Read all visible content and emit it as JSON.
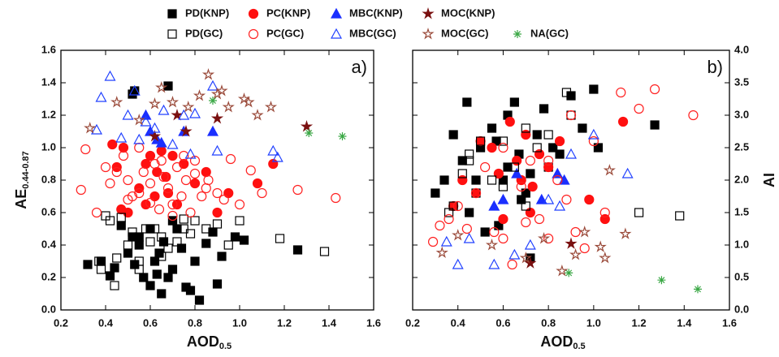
{
  "chart_data": [
    {
      "type": "scatter",
      "panel_label": "a)",
      "xlabel": {
        "text": "AOD",
        "sub": "0.5"
      },
      "ylabel": {
        "text": "AE",
        "sub": "0.44-0.87"
      },
      "xlim": [
        0.2,
        1.6
      ],
      "xticks": [
        0.2,
        0.4,
        0.6,
        0.8,
        {
          "value": 1,
          "label": "1.0"
        },
        1.2,
        1.4,
        1.6
      ],
      "ylim": [
        0,
        1.6
      ],
      "yticks": [
        {
          "value": 0,
          "label": "0.0"
        },
        0.2,
        0.4,
        0.6,
        0.8,
        {
          "value": 1,
          "label": "1.0"
        },
        1.2,
        1.4,
        1.6
      ],
      "series": [
        {
          "name": "PD(KNP)",
          "color": "#000000",
          "marker": "square",
          "filled": true,
          "x": [
            0.32,
            0.38,
            0.42,
            0.44,
            0.47,
            0.5,
            0.52,
            0.53,
            0.55,
            0.57,
            0.6,
            0.62,
            0.64,
            0.65,
            0.66,
            0.68,
            0.7,
            0.72,
            0.74,
            0.76,
            0.78,
            0.8,
            0.82,
            0.85,
            0.88,
            0.9,
            0.92,
            0.98,
            1.02,
            1.26,
            0.52,
            0.53,
            0.68,
            0.55,
            0.6,
            0.63,
            0.7
          ],
          "values": [
            0.28,
            0.3,
            0.21,
            0.26,
            0.52,
            0.35,
            0.45,
            0.28,
            0.4,
            0.2,
            0.15,
            0.3,
            0.35,
            0.1,
            0.42,
            0.2,
            0.25,
            0.5,
            0.38,
            0.14,
            0.12,
            0.3,
            0.06,
            0.41,
            0.48,
            0.16,
            0.33,
            0.45,
            0.43,
            0.37,
            1.33,
            1.35,
            1.38,
            0.45,
            0.5,
            0.22,
            0.55
          ]
        },
        {
          "name": "PC(KNP)",
          "color": "#ff1010",
          "marker": "circle",
          "filled": true,
          "x": [
            0.43,
            0.45,
            0.48,
            0.5,
            0.55,
            0.58,
            0.6,
            0.62,
            0.63,
            0.65,
            0.67,
            0.7,
            0.72,
            0.75,
            0.8,
            0.85,
            0.9,
            0.95,
            1.08,
            1.15,
            0.47,
            0.58,
            0.68
          ],
          "values": [
            1.02,
            0.88,
            1.0,
            0.6,
            0.75,
            0.9,
            0.95,
            0.7,
            0.85,
            0.98,
            0.82,
            0.95,
            0.65,
            0.9,
            0.78,
            0.85,
            0.6,
            0.72,
            0.78,
            0.9,
            0.62,
            0.65,
            0.72
          ]
        },
        {
          "name": "MBC(KNP)",
          "color": "#1a2fff",
          "marker": "triangle",
          "filled": true,
          "x": [
            0.58,
            0.6,
            0.63,
            0.65,
            0.75,
            0.88
          ],
          "values": [
            1.2,
            1.1,
            1.05,
            1.03,
            1.1,
            1.1
          ]
        },
        {
          "name": "MOC(KNP)",
          "color": "#7a1010",
          "marker": "star",
          "filled": true,
          "x": [
            0.62,
            0.72,
            0.76,
            0.9,
            1.3
          ],
          "values": [
            1.07,
            1.2,
            1.1,
            1.18,
            1.13
          ]
        },
        {
          "name": "PD(GC)",
          "color": "#000000",
          "marker": "square",
          "filled": false,
          "x": [
            0.37,
            0.38,
            0.4,
            0.42,
            0.44,
            0.45,
            0.47,
            0.5,
            0.52,
            0.55,
            0.58,
            0.6,
            0.62,
            0.65,
            0.68,
            0.7,
            0.72,
            0.75,
            0.78,
            0.8,
            0.85,
            0.9,
            0.95,
            1.0,
            1.18,
            1.38,
            0.55,
            0.65,
            0.75
          ],
          "values": [
            0.3,
            0.25,
            0.58,
            0.55,
            0.15,
            0.32,
            0.57,
            0.4,
            0.48,
            0.3,
            0.5,
            0.42,
            0.5,
            0.45,
            0.38,
            0.55,
            0.42,
            0.5,
            0.47,
            0.55,
            0.5,
            0.53,
            0.4,
            0.55,
            0.44,
            0.36,
            0.25,
            0.33,
            0.56
          ]
        },
        {
          "name": "PC(GC)",
          "color": "#ff2020",
          "marker": "circle",
          "filled": false,
          "x": [
            0.29,
            0.31,
            0.36,
            0.4,
            0.42,
            0.45,
            0.48,
            0.5,
            0.52,
            0.55,
            0.57,
            0.6,
            0.62,
            0.64,
            0.66,
            0.68,
            0.7,
            0.72,
            0.74,
            0.76,
            0.78,
            0.8,
            0.83,
            0.86,
            0.9,
            0.93,
            0.96,
            1.0,
            1.05,
            1.1,
            1.26,
            1.43,
            0.5,
            0.55,
            0.6,
            0.65,
            0.7,
            0.75,
            0.8,
            0.85
          ],
          "values": [
            0.74,
            0.99,
            0.6,
            0.88,
            0.78,
            0.85,
            0.95,
            0.8,
            0.7,
            1.0,
            0.85,
            0.78,
            0.9,
            0.62,
            0.82,
            0.75,
            0.65,
            0.88,
            0.7,
            0.8,
            0.6,
            0.92,
            0.7,
            0.8,
            0.72,
            0.68,
            0.93,
            0.65,
            0.86,
            0.72,
            0.74,
            0.69,
            0.68,
            0.72,
            0.66,
            0.92,
            0.58,
            0.95,
            0.84,
            0.75
          ]
        },
        {
          "name": "MBC(GC)",
          "color": "#2040ff",
          "marker": "triangle",
          "filled": false,
          "x": [
            0.36,
            0.38,
            0.42,
            0.47,
            0.5,
            0.53,
            0.58,
            0.62,
            0.66,
            0.7,
            0.75,
            0.78,
            0.8,
            0.88,
            0.9,
            1.15,
            1.17,
            0.55
          ],
          "values": [
            1.11,
            1.31,
            1.44,
            1.06,
            1.2,
            1.35,
            1.16,
            1.12,
            1.23,
            1.02,
            1.2,
            0.96,
            1.21,
            1.38,
            0.98,
            0.98,
            0.94,
            1.05
          ]
        },
        {
          "name": "MOC(GC)",
          "color": "#9a4a3a",
          "marker": "star",
          "filled": false,
          "x": [
            0.33,
            0.45,
            0.55,
            0.62,
            0.65,
            0.7,
            0.77,
            0.82,
            0.86,
            0.9,
            0.92,
            1.02,
            1.04,
            1.08,
            1.14,
            0.95
          ],
          "values": [
            1.12,
            1.28,
            1.17,
            1.27,
            1.37,
            1.28,
            1.25,
            1.32,
            1.45,
            1.33,
            1.35,
            1.3,
            1.28,
            1.2,
            1.25,
            1.25
          ]
        },
        {
          "name": "NA(GC)",
          "color": "#3aa845",
          "marker": "asterisk",
          "filled": false,
          "x": [
            0.88,
            1.31,
            1.46
          ],
          "values": [
            1.29,
            1.09,
            1.07
          ]
        }
      ]
    },
    {
      "type": "scatter",
      "panel_label": "b)",
      "xlabel": {
        "text": "AOD",
        "sub": "0.5"
      },
      "y2label": "AI",
      "xlim": [
        0.2,
        1.6
      ],
      "xticks": [
        0.2,
        0.4,
        0.6,
        0.8,
        {
          "value": 1,
          "label": "1.0"
        },
        1.2,
        1.4,
        1.6
      ],
      "y2lim": [
        0,
        4
      ],
      "y2ticks": [
        {
          "value": 0,
          "label": "0.0"
        },
        0.5,
        {
          "value": 1,
          "label": "1.0"
        },
        1.5,
        {
          "value": 2,
          "label": "2.0"
        },
        2.5,
        {
          "value": 3,
          "label": "3.0"
        },
        3.5,
        {
          "value": 4,
          "label": "4.0"
        }
      ],
      "series": [
        {
          "axis": "y2",
          "color": "#000000",
          "marker": "square",
          "filled": true,
          "x": [
            0.3,
            0.34,
            0.38,
            0.42,
            0.44,
            0.45,
            0.48,
            0.5,
            0.52,
            0.55,
            0.57,
            0.6,
            0.62,
            0.65,
            0.67,
            0.7,
            0.72,
            0.75,
            0.78,
            0.8,
            0.82,
            0.85,
            0.9,
            0.95,
            1.0,
            1.02,
            1.27,
            0.58,
            0.62,
            0.68,
            0.72
          ],
          "values": [
            1.8,
            2.0,
            2.7,
            2.3,
            3.2,
            1.5,
            2.0,
            2.5,
            1.2,
            2.8,
            2.6,
            2.0,
            3.0,
            3.2,
            2.4,
            1.8,
            0.8,
            2.7,
            3.1,
            2.2,
            2.5,
            2.4,
            3.3,
            2.8,
            3.4,
            2.5,
            2.85,
            1.3,
            2.2,
            1.7,
            2.1
          ]
        },
        {
          "axis": "y2",
          "color": "#ff1010",
          "marker": "circle",
          "filled": true,
          "x": [
            0.38,
            0.42,
            0.48,
            0.5,
            0.55,
            0.6,
            0.63,
            0.66,
            0.7,
            0.73,
            0.76,
            0.8,
            0.85,
            0.98,
            1.05,
            1.13,
            0.58,
            0.68,
            0.72
          ],
          "values": [
            1.6,
            2.0,
            1.8,
            2.6,
            2.5,
            1.4,
            2.9,
            2.3,
            2.7,
            1.9,
            2.4,
            2.2,
            2.6,
            1.7,
            1.4,
            2.9,
            2.1,
            2.0,
            1.5
          ]
        },
        {
          "axis": "y2",
          "color": "#1a2fff",
          "marker": "triangle",
          "filled": true,
          "x": [
            0.56,
            0.6,
            0.66,
            0.77,
            0.84,
            0.87
          ],
          "values": [
            1.6,
            1.7,
            2.1,
            1.7,
            2.1,
            2.0
          ]
        },
        {
          "axis": "y2",
          "color": "#7a1010",
          "marker": "star",
          "filled": true,
          "x": [
            0.72,
            0.9
          ],
          "values": [
            0.72,
            1.02
          ]
        },
        {
          "axis": "y2",
          "color": "#000000",
          "marker": "square",
          "filled": false,
          "x": [
            0.36,
            0.38,
            0.42,
            0.45,
            0.48,
            0.5,
            0.55,
            0.6,
            0.65,
            0.7,
            0.75,
            0.8,
            0.88,
            0.9,
            1.2,
            1.38,
            0.45,
            0.6,
            0.7
          ],
          "values": [
            1.5,
            1.6,
            2.1,
            2.3,
            1.8,
            2.6,
            2.0,
            1.9,
            2.2,
            2.8,
            2.5,
            2.7,
            3.35,
            3.0,
            1.5,
            1.45,
            2.4,
            2.6,
            1.6
          ]
        },
        {
          "axis": "y2",
          "color": "#ff2020",
          "marker": "circle",
          "filled": false,
          "x": [
            0.29,
            0.32,
            0.36,
            0.4,
            0.44,
            0.48,
            0.52,
            0.56,
            0.6,
            0.64,
            0.68,
            0.72,
            0.76,
            0.8,
            0.84,
            0.88,
            0.92,
            0.96,
            1.0,
            1.05,
            1.12,
            1.2,
            1.27,
            1.44,
            0.6,
            0.7,
            0.8,
            0.9
          ],
          "values": [
            1.05,
            1.3,
            1.4,
            1.6,
            1.25,
            1.8,
            2.2,
            1.2,
            2.5,
            0.7,
            1.9,
            2.3,
            1.4,
            1.1,
            2.0,
            1.7,
            1.2,
            0.95,
            2.6,
            1.5,
            3.35,
            3.1,
            3.4,
            3.0,
            1.1,
            1.35,
            2.3,
            3.0
          ]
        },
        {
          "axis": "y2",
          "color": "#2040ff",
          "marker": "triangle",
          "filled": false,
          "x": [
            0.35,
            0.4,
            0.45,
            0.56,
            0.65,
            0.72,
            0.8,
            0.85,
            0.9,
            1.0,
            1.15
          ],
          "values": [
            1.05,
            0.7,
            1.1,
            0.7,
            0.85,
            1.0,
            1.7,
            1.6,
            2.4,
            2.7,
            2.1
          ]
        },
        {
          "axis": "y2",
          "color": "#9a4a3a",
          "marker": "star",
          "filled": false,
          "x": [
            0.33,
            0.4,
            0.55,
            0.7,
            0.78,
            0.86,
            0.92,
            0.96,
            1.03,
            1.05,
            1.07,
            1.14
          ],
          "values": [
            0.88,
            1.15,
            1.0,
            0.8,
            1.1,
            0.6,
            0.85,
            1.2,
            0.97,
            0.8,
            2.15,
            1.17
          ]
        },
        {
          "axis": "y2",
          "color": "#3aa845",
          "marker": "asterisk",
          "filled": false,
          "x": [
            0.89,
            1.3,
            1.46
          ],
          "values": [
            0.57,
            0.46,
            0.32
          ]
        }
      ]
    }
  ]
}
